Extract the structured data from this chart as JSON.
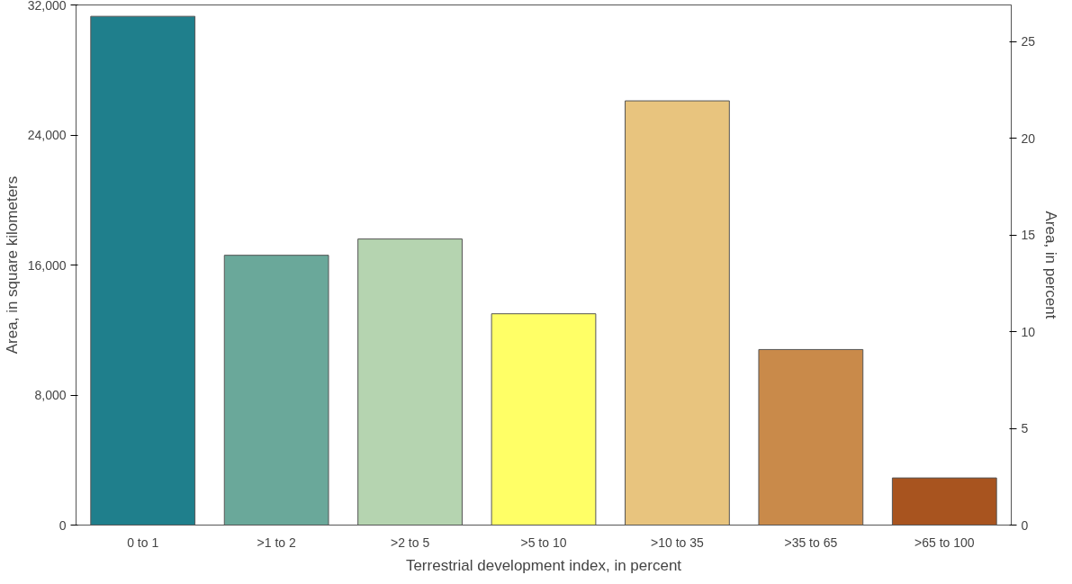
{
  "chart_data": {
    "type": "bar",
    "xlabel": "Terrestrial development index, in percent",
    "ylabel": "Area, in square kilometers",
    "y2label": "Area, in percent",
    "categories": [
      "0 to 1",
      ">1 to 2",
      ">2 to 5",
      ">5 to 10",
      ">10 to 35",
      ">35 to 65",
      ">65 to 100"
    ],
    "values": [
      31300,
      16600,
      17600,
      13000,
      26100,
      10800,
      2900
    ],
    "colors": [
      "#1f7f8c",
      "#6aa89a",
      "#b5d4b0",
      "#ffff66",
      "#e8c47e",
      "#c98a4a",
      "#a8541f"
    ],
    "ylim": [
      0,
      32000
    ],
    "yticks": [
      {
        "value": 0,
        "label": "0"
      },
      {
        "value": 8000,
        "label": "8,000"
      },
      {
        "value": 16000,
        "label": "16,000"
      },
      {
        "value": 24000,
        "label": "24,000"
      },
      {
        "value": 32000,
        "label": "32,000"
      }
    ],
    "y2lim": [
      0,
      26.9
    ],
    "y2ticks": [
      0,
      5,
      10,
      15,
      20,
      25
    ],
    "grid": false
  }
}
